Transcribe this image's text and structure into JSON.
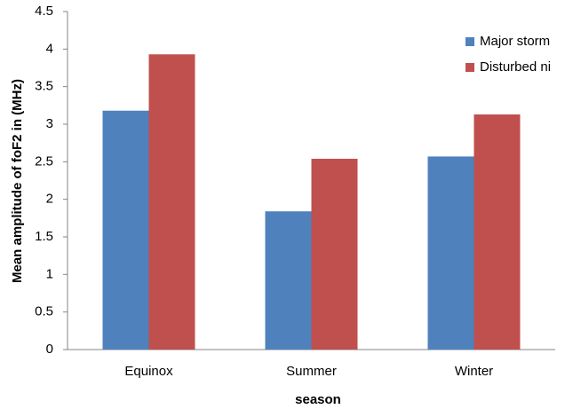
{
  "chart_data": {
    "type": "bar",
    "x_label": "season",
    "y_label": "Mean amplitude of foF2 in (MHz)",
    "categories": [
      "Equinox",
      "Summer",
      "Winter"
    ],
    "series": [
      {
        "name": "Major  storm",
        "color": "#4f81bd",
        "values": [
          3.18,
          1.84,
          2.57
        ]
      },
      {
        "name": "Disturbed ni",
        "color": "#c0504d",
        "values": [
          3.93,
          2.54,
          3.13
        ]
      }
    ],
    "ylim": [
      0,
      4.5
    ],
    "yticks": [
      0,
      0.5,
      1,
      1.5,
      2,
      2.5,
      3,
      3.5,
      4,
      4.5
    ],
    "grid": false,
    "legend": "right"
  }
}
